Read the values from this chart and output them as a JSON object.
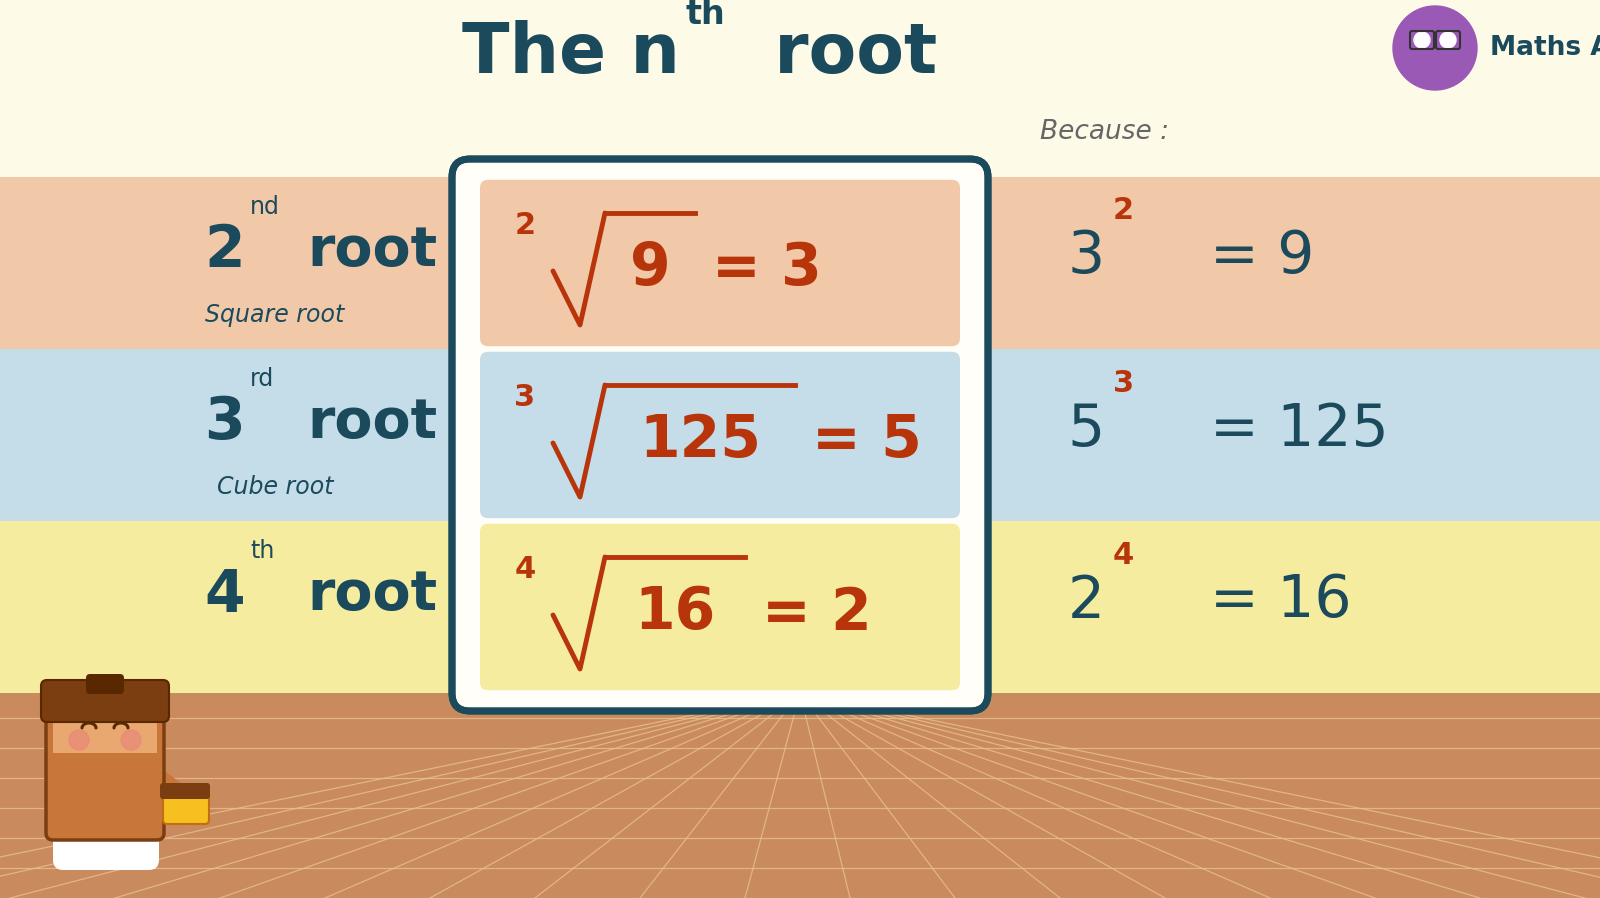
{
  "bg_color": "#FDFBE8",
  "floor_color": "#C98A5E",
  "floor_line_color": "#E8C090",
  "title_color": "#1B4A5C",
  "title_fontsize": 50,
  "card_bg": "#FFFEF8",
  "card_border": "#1B4A5C",
  "math_color": "#B8340A",
  "text_dark": "#1B4A5C",
  "because_color": "#666666",
  "rows": [
    {
      "row_color": "#F2C9A8",
      "left_main": "2",
      "left_sup": "nd",
      "left_bold": "root",
      "left_italic": "Square root",
      "radical_index": "2",
      "radical_radicand": "9",
      "result": "= 3",
      "power_base": "3",
      "power_exp": "2",
      "power_result": "= 9"
    },
    {
      "row_color": "#C5DDE8",
      "left_main": "3",
      "left_sup": "rd",
      "left_bold": "root",
      "left_italic": "Cube root",
      "radical_index": "3",
      "radical_radicand": "125",
      "result": "= 5",
      "power_base": "5",
      "power_exp": "3",
      "power_result": "= 125"
    },
    {
      "row_color": "#F5ECA0",
      "left_main": "4",
      "left_sup": "th",
      "left_bold": "root",
      "left_italic": "",
      "radical_index": "4",
      "radical_radicand": "16",
      "result": "= 2",
      "power_base": "2",
      "power_exp": "4",
      "power_result": "= 16"
    }
  ]
}
